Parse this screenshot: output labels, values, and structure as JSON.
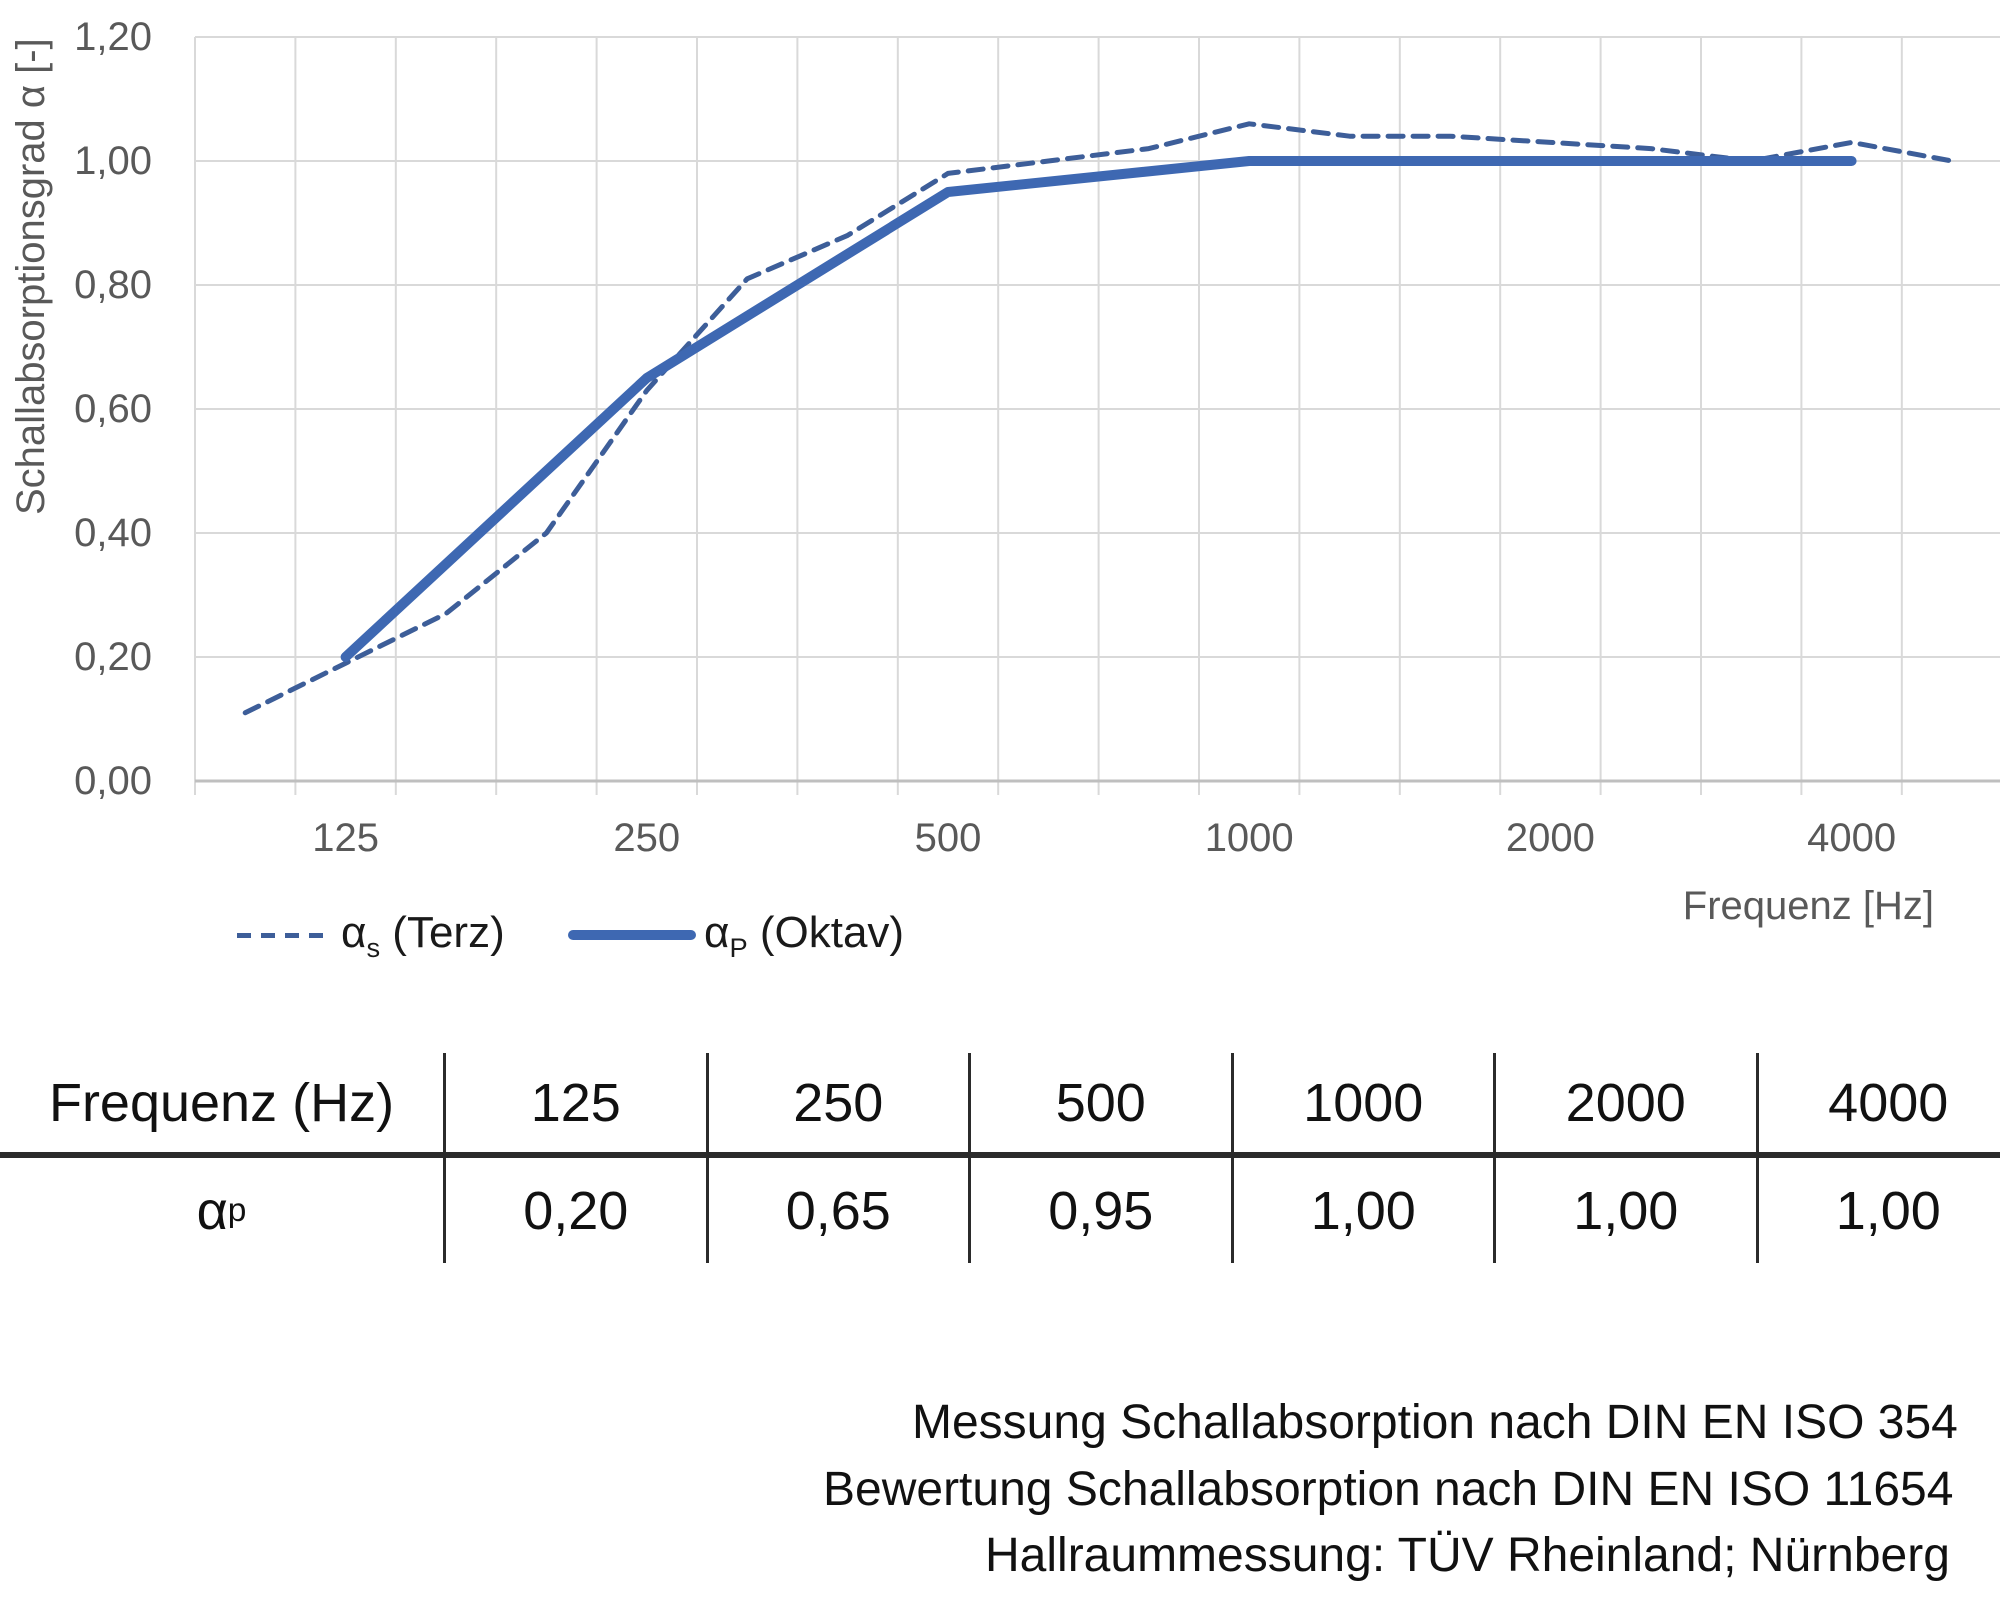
{
  "chart": {
    "y_axis": {
      "title": "Schallabsorptionsgrad α [-]",
      "ticks": [
        {
          "label": "1,20",
          "value": 1.2
        },
        {
          "label": "1,00",
          "value": 1.0
        },
        {
          "label": "0,80",
          "value": 0.8
        },
        {
          "label": "0,60",
          "value": 0.6
        },
        {
          "label": "0,40",
          "value": 0.4
        },
        {
          "label": "0,20",
          "value": 0.2
        },
        {
          "label": "0,00",
          "value": 0.0
        }
      ]
    },
    "x_axis": {
      "title": "Frequenz [Hz]",
      "ticks": [
        {
          "label": "125",
          "hz": 125
        },
        {
          "label": "250",
          "hz": 250
        },
        {
          "label": "500",
          "hz": 500
        },
        {
          "label": "1000",
          "hz": 1000
        },
        {
          "label": "2000",
          "hz": 2000
        },
        {
          "label": "4000",
          "hz": 4000
        }
      ]
    }
  },
  "chart_data": {
    "type": "line",
    "title": "",
    "xlabel": "Frequenz [Hz]",
    "ylabel": "Schallabsorptionsgrad α [-]",
    "ylim": [
      0.0,
      1.2
    ],
    "x_scale": "logarithmic third-octave categories",
    "grid": true,
    "legend_position": "bottom-left",
    "categories_hz": [
      100,
      125,
      160,
      200,
      250,
      315,
      400,
      500,
      630,
      800,
      1000,
      1250,
      1600,
      2000,
      2500,
      3150,
      4000,
      5000
    ],
    "series": [
      {
        "name": "αs (Terz)",
        "style": "dashed",
        "color": "#3d5e99",
        "values": [
          0.11,
          0.19,
          0.27,
          0.4,
          0.63,
          0.81,
          0.88,
          0.98,
          1.0,
          1.02,
          1.06,
          1.04,
          1.04,
          1.03,
          1.02,
          1.0,
          1.03,
          1.0
        ]
      },
      {
        "name": "αP (Oktav)",
        "style": "solid",
        "color": "#3e68b2",
        "x_hz": [
          125,
          250,
          500,
          1000,
          2000,
          4000
        ],
        "values": [
          0.2,
          0.65,
          0.95,
          1.0,
          1.0,
          1.0
        ]
      }
    ]
  },
  "legend": {
    "terz": {
      "alpha": "α",
      "sub": "s",
      "rest": " (Terz)"
    },
    "oktav": {
      "alpha": "α",
      "sub": "P",
      "rest": " (Oktav)"
    }
  },
  "table": {
    "header": [
      "Frequenz (Hz)",
      "125",
      "250",
      "500",
      "1000",
      "2000",
      "4000"
    ],
    "row_label": {
      "alpha": "α",
      "sub": "p"
    },
    "values": [
      "0,20",
      "0,65",
      "0,95",
      "1,00",
      "1,00",
      "1,00"
    ]
  },
  "footer": {
    "lines": [
      "Messung Schallabsorption nach DIN EN ISO 354",
      "Bewertung Schallabsorption nach DIN EN ISO 11654",
      "Hallraummessung: TÜV Rheinland; Nürnberg"
    ]
  },
  "colors": {
    "solid_line": "#3e68b2",
    "dashed_line": "#3d5e99",
    "gridline": "#d9d9d9",
    "axis_line": "#bfbfbf",
    "axis_text": "#595959",
    "table_rule": "#2b2b2b",
    "text": "#111111"
  }
}
